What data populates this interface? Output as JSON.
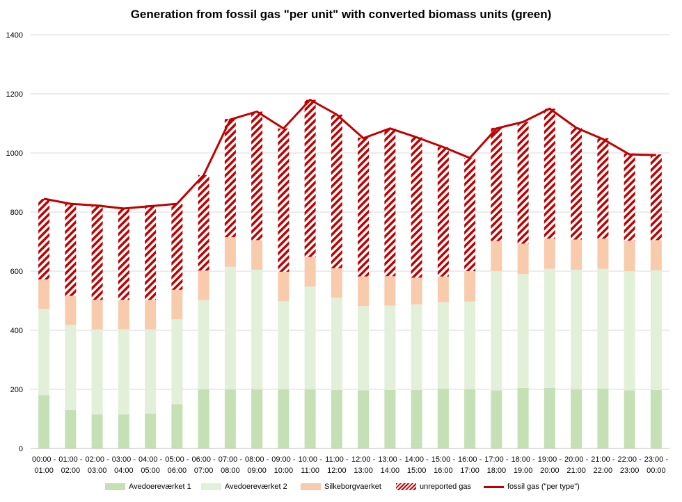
{
  "chart_data": {
    "type": "bar",
    "title": "Generation from fossil gas \"per unit\" with converted biomass units (green)",
    "ylim": [
      0,
      1400
    ],
    "yticks": [
      0,
      200,
      400,
      600,
      800,
      1000,
      1200,
      1400
    ],
    "grid": true,
    "legend_position": "bottom",
    "categories": [
      [
        "00:00 -",
        "01:00"
      ],
      [
        "01:00 -",
        "02:00"
      ],
      [
        "02:00 -",
        "03:00"
      ],
      [
        "03:00 -",
        "04:00"
      ],
      [
        "04:00 -",
        "05:00"
      ],
      [
        "05:00 -",
        "06:00"
      ],
      [
        "06:00 -",
        "07:00"
      ],
      [
        "07:00 -",
        "08:00"
      ],
      [
        "08:00 -",
        "09:00"
      ],
      [
        "09:00 -",
        "10:00"
      ],
      [
        "10:00 -",
        "11:00"
      ],
      [
        "11:00 -",
        "12:00"
      ],
      [
        "12:00 -",
        "13:00"
      ],
      [
        "13:00 -",
        "14:00"
      ],
      [
        "14:00 -",
        "15:00"
      ],
      [
        "15:00 -",
        "16:00"
      ],
      [
        "16:00 -",
        "17:00"
      ],
      [
        "17:00 -",
        "18:00"
      ],
      [
        "18:00 -",
        "19:00"
      ],
      [
        "19:00 -",
        "20:00"
      ],
      [
        "20:00 -",
        "21:00"
      ],
      [
        "21:00 -",
        "22:00"
      ],
      [
        "22:00 -",
        "23:00"
      ],
      [
        "23:00 -",
        "00:00"
      ]
    ],
    "series": [
      {
        "name": "Avedoereværket 1",
        "kind": "bar",
        "color": "#c5e0b4",
        "values": [
          180,
          130,
          115,
          115,
          118,
          150,
          200,
          200,
          200,
          200,
          200,
          198,
          197,
          198,
          198,
          202,
          200,
          197,
          205,
          205,
          200,
          203,
          197,
          198
        ]
      },
      {
        "name": "Avedoereværket 2",
        "kind": "bar",
        "color": "#e2f0d9",
        "values": [
          292,
          288,
          288,
          288,
          285,
          287,
          302,
          415,
          405,
          298,
          348,
          312,
          285,
          285,
          290,
          293,
          297,
          403,
          385,
          403,
          405,
          405,
          403,
          405
        ]
      },
      {
        "name": "Silkeborgvaerket",
        "kind": "bar",
        "color": "#f8cbad",
        "values": [
          100,
          98,
          100,
          100,
          100,
          100,
          100,
          100,
          100,
          100,
          100,
          100,
          100,
          100,
          90,
          87,
          103,
          102,
          103,
          102,
          102,
          102,
          103,
          102
        ]
      },
      {
        "name": "unreported gas",
        "kind": "hatched-bar",
        "color": "#c00000",
        "values": [
          273,
          313,
          322,
          307,
          320,
          291,
          323,
          400,
          435,
          485,
          532,
          520,
          470,
          500,
          475,
          438,
          383,
          383,
          412,
          440,
          380,
          340,
          295,
          290
        ]
      },
      {
        "name": "fossil gas (\"per type\")",
        "kind": "line",
        "color": "#c00000",
        "values": [
          845,
          828,
          822,
          812,
          820,
          828,
          925,
          1113,
          1140,
          1083,
          1180,
          1130,
          1050,
          1083,
          1053,
          1020,
          983,
          1083,
          1105,
          1150,
          1085,
          1047,
          995,
          993
        ]
      }
    ]
  }
}
